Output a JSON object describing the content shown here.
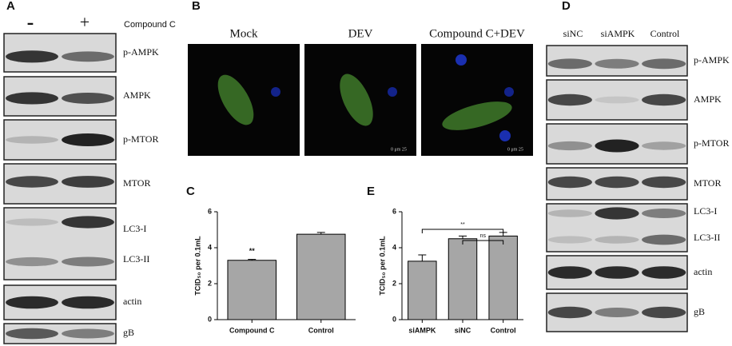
{
  "panel_labels": [
    "A",
    "B",
    "C",
    "D",
    "E"
  ],
  "blot_a": {
    "treatments": [
      "-",
      "+"
    ],
    "condition": "Compound C",
    "rows": [
      "p-AMPK",
      "AMPK",
      "p-MTOR",
      "MTOR",
      "LC3-I",
      "LC3-II",
      "actin",
      "gB"
    ]
  },
  "microscopy": {
    "panels": [
      {
        "label": "Mock"
      },
      {
        "label": "DEV",
        "scale": "0 μm 25"
      },
      {
        "label": "Compound C+DEV",
        "scale": "0 μm 25"
      }
    ]
  },
  "blot_d": {
    "columns": [
      "siNC",
      "siAMPK",
      "Control"
    ],
    "rows": [
      "p-AMPK",
      "AMPK",
      "p-MTOR",
      "MTOR",
      "LC3-I",
      "LC3-II",
      "actin",
      "gB"
    ]
  },
  "chart_data": [
    {
      "type": "bar",
      "categories": [
        "Compound C",
        "Control"
      ],
      "values": [
        3.3,
        4.75
      ],
      "errors": [
        0.05,
        0.1
      ],
      "color": "#a6a6a6",
      "ylim": [
        0,
        6
      ],
      "yticks": [
        0,
        2,
        4,
        6
      ],
      "y_label": "TCID₅₀ per 0.1mL",
      "annotations": [
        {
          "text": "**",
          "category": "Compound C"
        }
      ]
    },
    {
      "type": "bar",
      "categories": [
        "siAMPK",
        "siNC",
        "Control"
      ],
      "values": [
        3.25,
        4.5,
        4.65
      ],
      "errors": [
        0.35,
        0.15,
        0.2
      ],
      "color": "#a6a6a6",
      "ylim": [
        0,
        6
      ],
      "yticks": [
        0,
        2,
        4,
        6
      ],
      "y_label": "TCID₅₀ per 0.1mL",
      "annotations": [
        {
          "text": "**",
          "from": "siAMPK",
          "to": "Control"
        },
        {
          "text": "ns",
          "from": "siNC",
          "to": "Control"
        }
      ]
    }
  ]
}
